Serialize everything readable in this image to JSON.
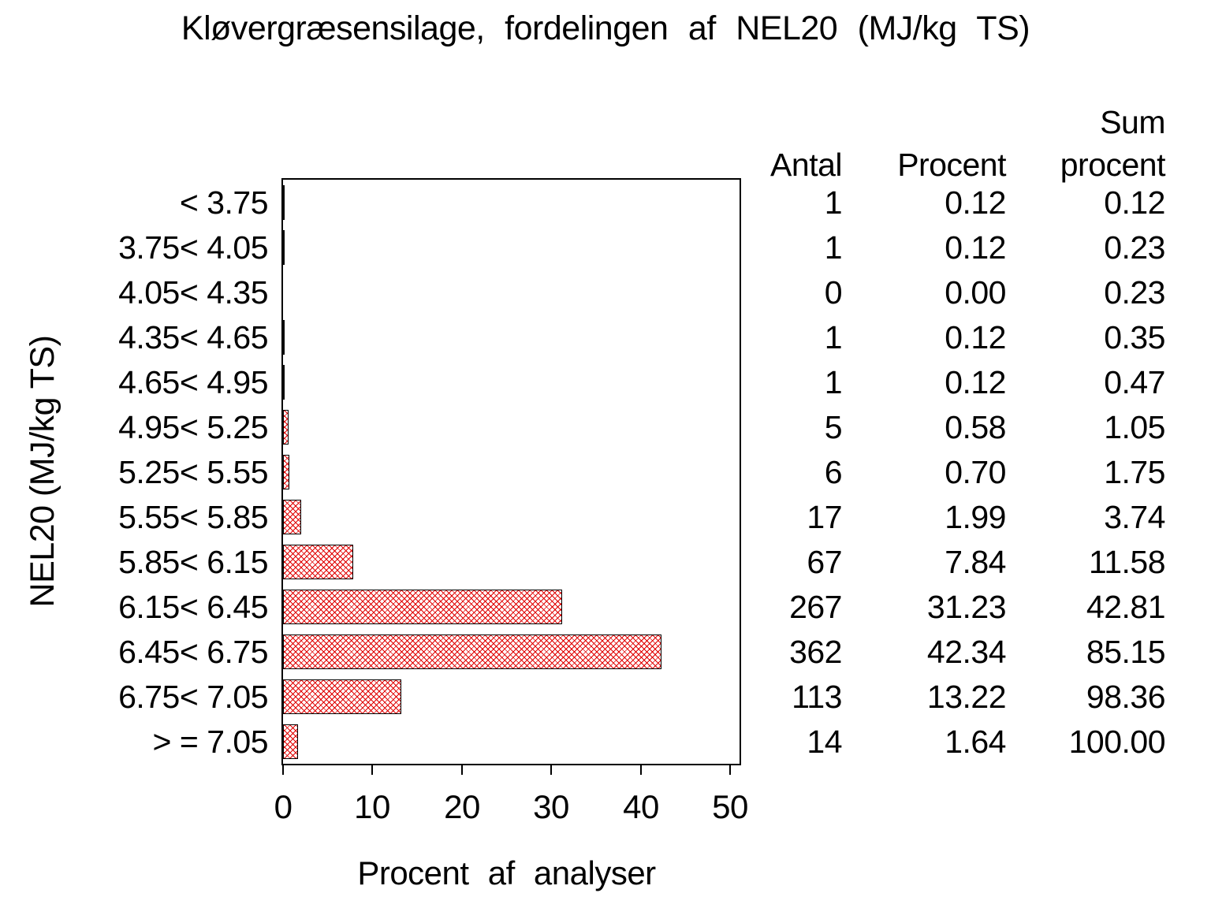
{
  "title": "Kløvergræsensilage, fordelingen af NEL20 (MJ/kg TS)",
  "chart_data": {
    "type": "bar",
    "orientation": "horizontal",
    "title": "Kløvergræsensilage, fordelingen af NEL20 (MJ/kg TS)",
    "xlabel": "Procent af analyser",
    "ylabel": "NEL20 (MJ/kg TS)",
    "xlim": [
      0,
      51.2
    ],
    "xticks": [
      0,
      10,
      20,
      30,
      40,
      50
    ],
    "grid": "off",
    "bar_style": "red diagonal crosshatch with black outline",
    "hatch_color": "#e00000",
    "frame_color": "#000000",
    "categories": [
      "< 3.75",
      "3.75< 4.05",
      "4.05< 4.35",
      "4.35< 4.65",
      "4.65< 4.95",
      "4.95< 5.25",
      "5.25< 5.55",
      "5.55< 5.85",
      "5.85< 6.15",
      "6.15< 6.45",
      "6.45< 6.75",
      "6.75< 7.05",
      "> = 7.05"
    ],
    "values": [
      0.12,
      0.12,
      0.0,
      0.12,
      0.12,
      0.58,
      0.7,
      1.99,
      7.84,
      31.23,
      42.34,
      13.22,
      1.64
    ],
    "table": {
      "headers": {
        "antal": "Antal",
        "procent": "Procent",
        "sum_line1": "Sum",
        "sum_line2": "procent"
      },
      "antal": [
        "1",
        "1",
        "0",
        "1",
        "1",
        "5",
        "6",
        "17",
        "67",
        "267",
        "362",
        "113",
        "14"
      ],
      "procent": [
        "0.12",
        "0.12",
        "0.00",
        "0.12",
        "0.12",
        "0.58",
        "0.70",
        "1.99",
        "7.84",
        "31.23",
        "42.34",
        "13.22",
        "1.64"
      ],
      "sum_procent": [
        "0.12",
        "0.23",
        "0.23",
        "0.35",
        "0.47",
        "1.05",
        "1.75",
        "3.74",
        "11.58",
        "42.81",
        "85.15",
        "98.36",
        "100.00"
      ]
    }
  }
}
